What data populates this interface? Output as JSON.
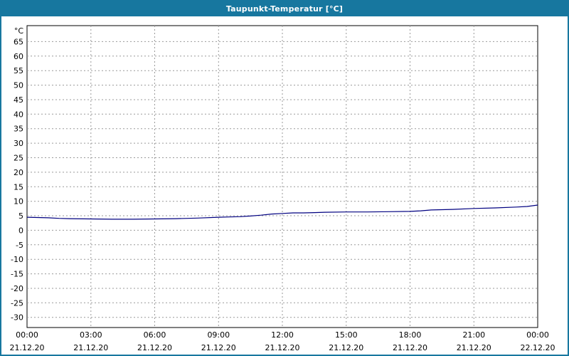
{
  "window": {
    "title": "Taupunkt-Temperatur [°C]"
  },
  "colors": {
    "titlebar": "#17779f",
    "page_border": "#17779f",
    "plot_border": "#000000",
    "background": "#ffffff",
    "grid": "#9a9a9a",
    "line": "#000080",
    "text": "#000000"
  },
  "chart_data": {
    "type": "line",
    "title": "Taupunkt-Temperatur [°C]",
    "ylabel_unit": "°C",
    "ylim": [
      -33.5,
      70.5
    ],
    "ytick_min": -30,
    "ytick_max": 65,
    "ytick_step": 5,
    "xlim_hours": [
      0,
      24
    ],
    "xtick_step_hours": 3,
    "grid": {
      "color": "#9a9a9a",
      "style": "dashed"
    },
    "legend_position": "none",
    "xticks": [
      {
        "time": "00:00",
        "date": "21.12.20"
      },
      {
        "time": "03:00",
        "date": "21.12.20"
      },
      {
        "time": "06:00",
        "date": "21.12.20"
      },
      {
        "time": "09:00",
        "date": "21.12.20"
      },
      {
        "time": "12:00",
        "date": "21.12.20"
      },
      {
        "time": "15:00",
        "date": "21.12.20"
      },
      {
        "time": "18:00",
        "date": "21.12.20"
      },
      {
        "time": "21:00",
        "date": "21.12.20"
      },
      {
        "time": "00:00",
        "date": "22.12.20"
      }
    ],
    "series": [
      {
        "name": "Taupunkt-Temperatur",
        "color": "#000080",
        "x_hours": [
          0,
          0.5,
          1,
          1.5,
          2,
          3,
          4,
          5,
          6,
          7,
          8,
          9,
          9.5,
          10,
          10.5,
          11,
          11.5,
          12,
          12.5,
          13,
          13.5,
          14,
          15,
          16,
          17,
          18,
          18.5,
          19,
          19.5,
          20,
          21,
          22,
          23,
          23.5,
          24
        ],
        "values": [
          4.5,
          4.4,
          4.3,
          4.1,
          4.0,
          3.9,
          3.8,
          3.8,
          3.9,
          4.0,
          4.2,
          4.5,
          4.6,
          4.7,
          4.9,
          5.2,
          5.6,
          5.8,
          6.0,
          6.0,
          6.1,
          6.2,
          6.3,
          6.3,
          6.4,
          6.5,
          6.7,
          7.0,
          7.1,
          7.2,
          7.5,
          7.7,
          8.0,
          8.2,
          8.7
        ]
      }
    ]
  }
}
